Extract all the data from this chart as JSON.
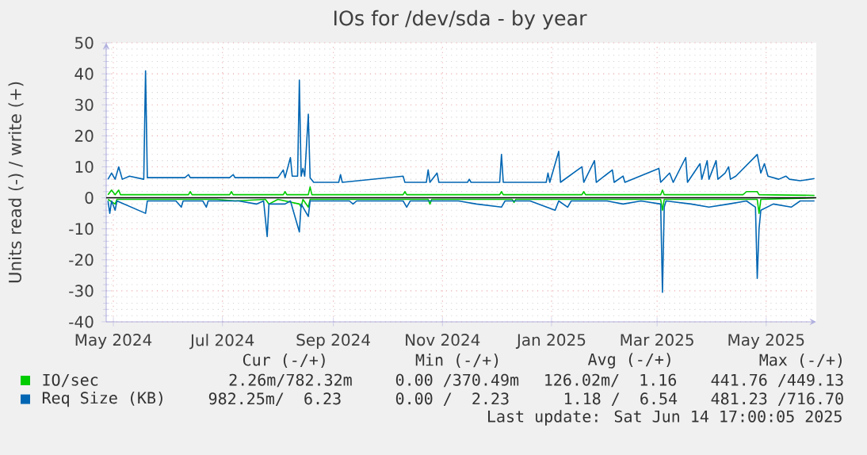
{
  "chart_data": {
    "type": "line",
    "title": "IOs for /dev/sda - by year",
    "ylabel": "Units read (-) / write (+)",
    "xlim": [
      "2024-04-27",
      "2025-05-29"
    ],
    "xticks": [
      {
        "value": "2024-05-01",
        "label": "May 2024"
      },
      {
        "value": "2024-07-01",
        "label": "Jul 2024"
      },
      {
        "value": "2024-09-01",
        "label": "Sep 2024"
      },
      {
        "value": "2024-11-01",
        "label": "Nov 2024"
      },
      {
        "value": "2025-01-01",
        "label": "Jan 2025"
      },
      {
        "value": "2025-03-01",
        "label": "Mar 2025"
      },
      {
        "value": "2025-05-01",
        "label": "May 2025"
      }
    ],
    "ylim": [
      -40,
      50
    ],
    "yticks": [
      -40,
      -30,
      -20,
      -10,
      0,
      10,
      20,
      30,
      40,
      50
    ],
    "grid": true,
    "legend": "bottom",
    "ref_lines": [
      {
        "axis": "y",
        "value": 0,
        "color": "#000000"
      }
    ],
    "series": [
      {
        "color": "#00cc00",
        "x": [
          "2024-04-28",
          "2024-05-02",
          "2024-05-03",
          "2024-06-28",
          "2024-07-08",
          "2024-07-25",
          "2024-07-27",
          "2024-08-01",
          "2024-08-13",
          "2024-08-14",
          "2024-08-15",
          "2024-08-18",
          "2024-08-19",
          "2024-10-24",
          "2024-10-25",
          "2024-10-26",
          "2024-12-10",
          "2024-12-11",
          "2024-12-12",
          "2025-03-03",
          "2025-03-04",
          "2025-03-05",
          "2025-04-26",
          "2025-04-27",
          "2025-04-28",
          "2025-05-28"
        ],
        "values": [
          -0.5,
          -2,
          -0.5,
          -0.5,
          -1,
          -0.5,
          -2,
          -0.5,
          -2,
          -3,
          -0.5,
          -3,
          -0.5,
          -0.5,
          -2,
          -0.5,
          -0.5,
          -1.5,
          -0.5,
          -0.5,
          -4,
          -0.5,
          -0.5,
          -5,
          -0.5,
          0
        ]
      },
      {
        "name": "IO/sec",
        "color": "#00cc00",
        "x": [
          "2024-04-28",
          "2024-04-30",
          "2024-05-02",
          "2024-05-04",
          "2024-05-05",
          "2024-06-12",
          "2024-06-13",
          "2024-06-14",
          "2024-07-05",
          "2024-07-06",
          "2024-07-07",
          "2024-08-04",
          "2024-08-05",
          "2024-08-06",
          "2024-08-18",
          "2024-08-19",
          "2024-08-20",
          "2024-10-10",
          "2024-10-11",
          "2024-10-12",
          "2024-12-03",
          "2024-12-04",
          "2024-12-05",
          "2025-01-18",
          "2025-01-19",
          "2025-01-20",
          "2025-03-03",
          "2025-03-04",
          "2025-03-05",
          "2025-04-18",
          "2025-04-20",
          "2025-04-26",
          "2025-04-27",
          "2025-05-28"
        ],
        "values": [
          1,
          2.5,
          1,
          2.5,
          1,
          1,
          2,
          1,
          1,
          2,
          1,
          1,
          2,
          1,
          1,
          3.5,
          1,
          1,
          2,
          1,
          1,
          2,
          1,
          1,
          2,
          1,
          1,
          2.5,
          1,
          1,
          2,
          2,
          1,
          0.8
        ]
      },
      {
        "color": "#0066b3",
        "x": [
          "2024-04-28",
          "2024-04-29",
          "2024-04-30",
          "2024-05-02",
          "2024-05-03",
          "2024-05-19",
          "2024-05-20",
          "2024-06-05",
          "2024-06-08",
          "2024-06-09",
          "2024-06-20",
          "2024-06-22",
          "2024-06-23",
          "2024-07-10",
          "2024-07-20",
          "2024-07-24",
          "2024-07-26",
          "2024-07-27",
          "2024-08-05",
          "2024-08-08",
          "2024-08-13",
          "2024-08-14",
          "2024-08-18",
          "2024-08-19",
          "2024-09-10",
          "2024-09-12",
          "2024-09-14",
          "2024-10-10",
          "2024-10-12",
          "2024-10-14",
          "2024-11-10",
          "2024-11-20",
          "2024-12-04",
          "2024-12-06",
          "2024-12-20",
          "2025-01-03",
          "2025-01-05",
          "2025-01-10",
          "2025-01-12",
          "2025-02-01",
          "2025-02-10",
          "2025-02-20",
          "2025-03-03",
          "2025-03-04",
          "2025-03-05",
          "2025-03-06",
          "2025-03-20",
          "2025-03-30",
          "2025-04-10",
          "2025-04-20",
          "2025-04-25",
          "2025-04-26",
          "2025-04-27",
          "2025-04-28",
          "2025-05-05",
          "2025-05-15",
          "2025-05-20",
          "2025-05-28"
        ],
        "values": [
          -1,
          -5,
          -1,
          -4,
          -1,
          -5,
          -1,
          -1,
          -3,
          -1,
          -1,
          -3,
          -1,
          -1,
          -2,
          -1,
          -12.5,
          -2,
          -2,
          -1,
          -11,
          -2,
          -6,
          -1,
          -1,
          -2,
          -1,
          -1,
          -3,
          -1,
          -1,
          -2,
          -3,
          -1,
          -1,
          -4,
          -1,
          -3,
          -1,
          -1,
          -2,
          -1,
          -2,
          -30.5,
          -3,
          -1,
          -2,
          -3,
          -2,
          -1,
          -3,
          -26,
          -10,
          -4,
          -2,
          -3,
          -1,
          -1
        ]
      },
      {
        "name": "Req Size (KB)",
        "color": "#0066b3",
        "x": [
          "2024-04-28",
          "2024-04-30",
          "2024-05-02",
          "2024-05-04",
          "2024-05-06",
          "2024-05-10",
          "2024-05-18",
          "2024-05-19",
          "2024-05-20",
          "2024-06-10",
          "2024-06-12",
          "2024-06-13",
          "2024-07-05",
          "2024-07-07",
          "2024-07-08",
          "2024-08-01",
          "2024-08-04",
          "2024-08-05",
          "2024-08-08",
          "2024-08-09",
          "2024-08-12",
          "2024-08-13",
          "2024-08-14",
          "2024-08-15",
          "2024-08-16",
          "2024-08-18",
          "2024-08-19",
          "2024-08-21",
          "2024-09-04",
          "2024-09-05",
          "2024-09-06",
          "2024-10-10",
          "2024-10-11",
          "2024-10-23",
          "2024-10-24",
          "2024-10-25",
          "2024-10-29",
          "2024-10-30",
          "2024-11-15",
          "2024-11-16",
          "2024-11-17",
          "2024-12-03",
          "2024-12-04",
          "2024-12-05",
          "2024-12-29",
          "2024-12-30",
          "2024-12-31",
          "2025-01-05",
          "2025-01-06",
          "2025-01-18",
          "2025-01-19",
          "2025-01-25",
          "2025-01-26",
          "2025-02-04",
          "2025-02-05",
          "2025-02-10",
          "2025-02-11",
          "2025-03-02",
          "2025-03-03",
          "2025-03-08",
          "2025-03-10",
          "2025-03-17",
          "2025-03-18",
          "2025-03-25",
          "2025-03-26",
          "2025-03-29",
          "2025-03-30",
          "2025-04-03",
          "2025-04-04",
          "2025-04-08",
          "2025-04-10",
          "2025-04-11",
          "2025-04-14",
          "2025-04-26",
          "2025-04-28",
          "2025-04-30",
          "2025-05-02",
          "2025-05-08",
          "2025-05-12",
          "2025-05-14",
          "2025-05-20",
          "2025-05-28"
        ],
        "values": [
          6,
          8,
          6,
          10,
          6,
          7,
          6,
          41,
          6.5,
          6.5,
          7.5,
          6.5,
          6.5,
          7.5,
          6.5,
          6.5,
          9,
          6.5,
          13,
          7,
          7,
          38,
          7,
          9.5,
          7,
          27,
          6.5,
          5,
          5,
          7.5,
          5,
          7,
          5,
          5,
          9,
          5,
          8,
          5,
          5,
          6,
          5,
          5,
          14,
          5,
          5,
          8,
          5,
          15,
          5,
          10,
          5,
          12,
          5,
          9,
          5,
          7,
          5,
          9.5,
          5,
          8,
          5,
          13,
          5,
          11,
          6,
          12,
          6,
          12,
          6,
          8,
          10,
          6,
          7,
          14,
          8,
          11,
          7,
          6,
          7,
          6,
          5.5,
          6.2
        ]
      }
    ],
    "annotations": [
      "Cur (-/+)",
      "Min (-/+)",
      "Avg (-/+)",
      "Max (-/+)",
      "2.26m/782.32m",
      "0.00 /370.49m",
      "126.02m/  1.16",
      "441.76 /449.13",
      "982.25m/  6.23",
      "0.00 /  2.23",
      "1.18 /  6.54",
      "481.23 /716.70",
      "Last update: Sat Jun 14 17:00:05 2025"
    ]
  }
}
